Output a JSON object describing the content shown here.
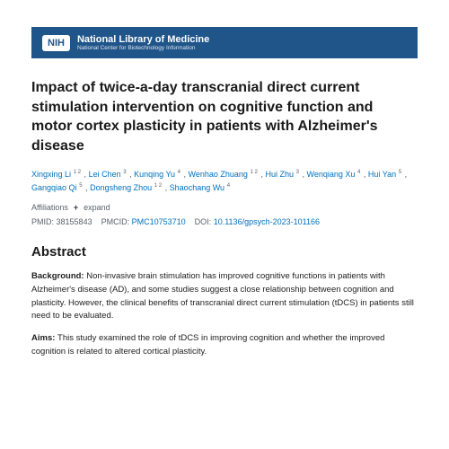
{
  "header": {
    "logo_text": "NIH",
    "title": "National Library of Medicine",
    "subtitle": "National Center for Biotechnology Information"
  },
  "article": {
    "title": "Impact of twice-a-day transcranial direct current stimulation intervention on cognitive function and motor cortex plasticity in patients with Alzheimer's disease"
  },
  "authors": [
    {
      "name": "Xingxing Li",
      "affs": "1 2"
    },
    {
      "name": "Lei Chen",
      "affs": "3"
    },
    {
      "name": "Kunqing Yu",
      "affs": "4"
    },
    {
      "name": "Wenhao Zhuang",
      "affs": "1 2"
    },
    {
      "name": "Hui Zhu",
      "affs": "3"
    },
    {
      "name": "Wenqiang Xu",
      "affs": "4"
    },
    {
      "name": "Hui Yan",
      "affs": "5"
    },
    {
      "name": "Gangqiao Qi",
      "affs": "5"
    },
    {
      "name": "Dongsheng Zhou",
      "affs": "1 2"
    },
    {
      "name": "Shaochang Wu",
      "affs": "4"
    }
  ],
  "affiliations": {
    "label": "Affiliations",
    "expand": "expand"
  },
  "meta": {
    "pmid_label": "PMID:",
    "pmid": "38155843",
    "pmcid_label": "PMCID:",
    "pmcid": "PMC10753710",
    "doi_label": "DOI:",
    "doi": "10.1136/gpsych-2023-101166"
  },
  "abstract": {
    "heading": "Abstract",
    "sections": [
      {
        "label": "Background:",
        "text": "Non-invasive brain stimulation has improved cognitive functions in patients with Alzheimer's disease (AD), and some studies suggest a close relationship between cognition and plasticity. However, the clinical benefits of transcranial direct current stimulation (tDCS) in patients still need to be evaluated."
      },
      {
        "label": "Aims:",
        "text": "This study examined the role of tDCS in improving cognition and whether the improved cognition is related to altered cortical plasticity."
      }
    ]
  },
  "colors": {
    "header_bg": "#20558a",
    "link": "#0071bc",
    "muted": "#5b616b",
    "text": "#212121"
  }
}
